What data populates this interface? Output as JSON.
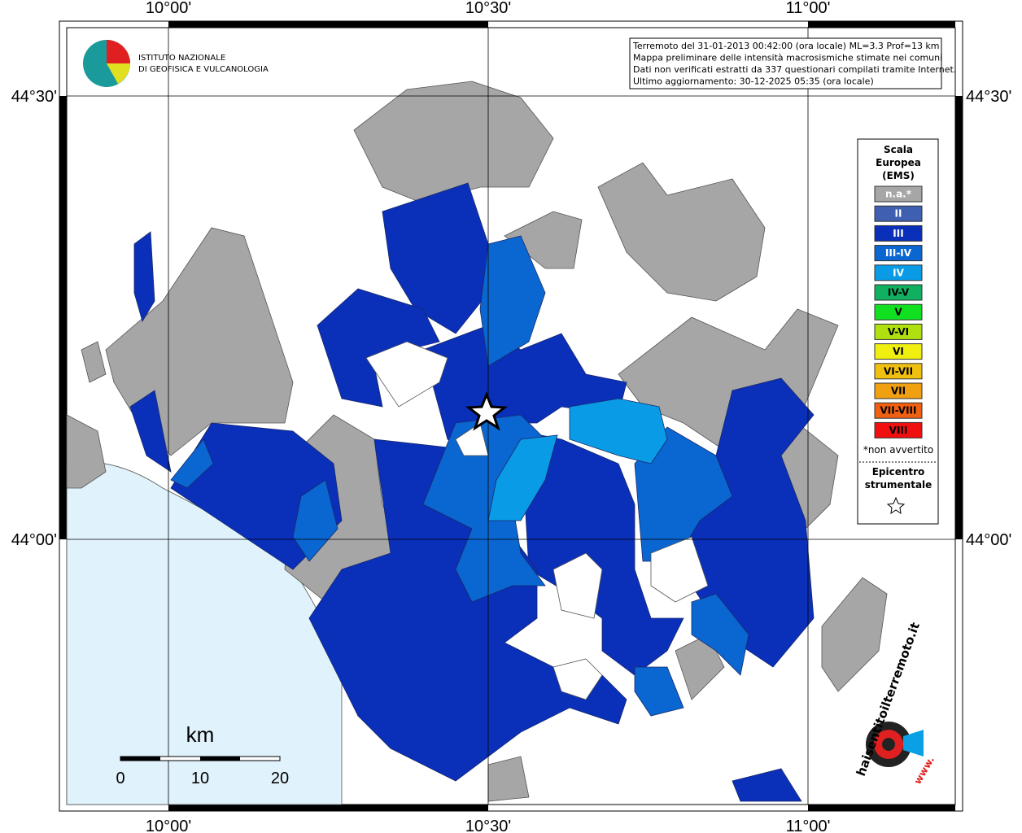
{
  "map": {
    "lon_labels": [
      "10°00'",
      "10°30'",
      "11°00'"
    ],
    "lat_labels": [
      "44°30'",
      "44°00'"
    ],
    "info": [
      "Terremoto del 31-01-2013 00:42:00 (ora locale) ML=3.3 Prof=13 km",
      "Mappa preliminare delle intensità macrosismiche stimate nei comuni",
      "Dati non verificati estratti da 337 questionari compilati tramite Internet.",
      "Ultimo aggiornamento: 30-12-2025 05:35 (ora locale)"
    ],
    "logo": [
      "ISTITUTO NAZIONALE",
      "DI GEOFISICA E VULCANOLOGIA"
    ],
    "legend": {
      "title": [
        "Scala",
        "Europea",
        "(EMS)"
      ],
      "items": [
        {
          "label": "n.a.*",
          "color": "#a6a6a6"
        },
        {
          "label": "II",
          "color": "#3f5fb0"
        },
        {
          "label": "III",
          "color": "#0a2fb8"
        },
        {
          "label": "III-IV",
          "color": "#0a66d0"
        },
        {
          "label": "IV",
          "color": "#0a9be6"
        },
        {
          "label": "IV-V",
          "color": "#10b060"
        },
        {
          "label": "V",
          "color": "#10e020"
        },
        {
          "label": "V-VI",
          "color": "#b0e010"
        },
        {
          "label": "VI",
          "color": "#f0f010"
        },
        {
          "label": "VI-VII",
          "color": "#f0c010"
        },
        {
          "label": "VII",
          "color": "#f0a010"
        },
        {
          "label": "VII-VIII",
          "color": "#f06010"
        },
        {
          "label": "VIII",
          "color": "#f01010"
        }
      ],
      "note": "*non avvertito",
      "epicenter": [
        "Epicentro",
        "strumentale"
      ]
    },
    "scale_bar": {
      "unit": "km",
      "ticks": [
        0,
        10,
        20
      ]
    },
    "site": "haisentitoilterremoto.it",
    "site_prefix": "www."
  }
}
